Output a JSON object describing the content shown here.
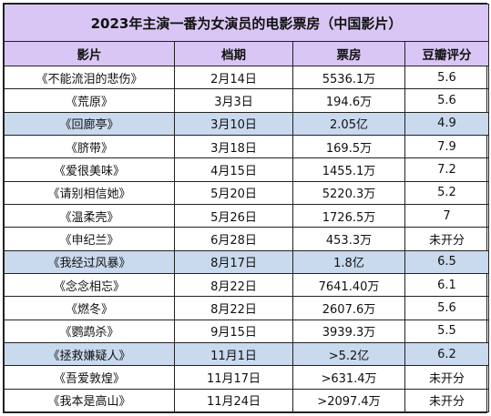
{
  "title": "2023年主演一番为女演员的电影票房（中国影片）",
  "headers": [
    "影片",
    "档期",
    "票房",
    "豆瓣评分"
  ],
  "highlight_color": "#c9d9ee",
  "header_color": "#d9c6f4",
  "rows": [
    {
      "film": "《不能流泪的悲伤》",
      "date": "2月14日",
      "box_office": "5536.1万",
      "rating": "5.6",
      "highlight": false
    },
    {
      "film": "《荒原》",
      "date": "3月3日",
      "box_office": "194.6万",
      "rating": "5.6",
      "highlight": false
    },
    {
      "film": "《回廊亭》",
      "date": "3月10日",
      "box_office": "2.05亿",
      "rating": "4.9",
      "highlight": true
    },
    {
      "film": "《脐带》",
      "date": "3月18日",
      "box_office": "169.5万",
      "rating": "7.9",
      "highlight": false
    },
    {
      "film": "《爱很美味》",
      "date": "4月15日",
      "box_office": "1455.1万",
      "rating": "7.2",
      "highlight": false
    },
    {
      "film": "《请别相信她》",
      "date": "5月20日",
      "box_office": "5220.3万",
      "rating": "5.2",
      "highlight": false
    },
    {
      "film": "《温柔壳》",
      "date": "5月26日",
      "box_office": "1726.5万",
      "rating": "7",
      "highlight": false
    },
    {
      "film": "《申纪兰》",
      "date": "6月28日",
      "box_office": "453.3万",
      "rating": "未开分",
      "highlight": false
    },
    {
      "film": "《我经过风暴》",
      "date": "8月17日",
      "box_office": "1.8亿",
      "rating": "6.5",
      "highlight": true
    },
    {
      "film": "《念念相忘》",
      "date": "8月22日",
      "box_office": "7641.40万",
      "rating": "6.1",
      "highlight": false
    },
    {
      "film": "《燃冬》",
      "date": "8月22日",
      "box_office": "2607.6万",
      "rating": "5.6",
      "highlight": false
    },
    {
      "film": "《鹦鹉杀》",
      "date": "9月15日",
      "box_office": "3939.3万",
      "rating": "5.5",
      "highlight": false
    },
    {
      "film": "《拯救嫌疑人》",
      "date": "11月1日",
      "box_office": ">5.2亿",
      "rating": "6.2",
      "highlight": true
    },
    {
      "film": "《吾爱敦煌》",
      "date": "11月17日",
      "box_office": ">631.4万",
      "rating": "未开分",
      "highlight": false
    },
    {
      "film": "《我本是高山》",
      "date": "11月24日",
      "box_office": ">2097.4万",
      "rating": "未开分",
      "highlight": false
    }
  ]
}
